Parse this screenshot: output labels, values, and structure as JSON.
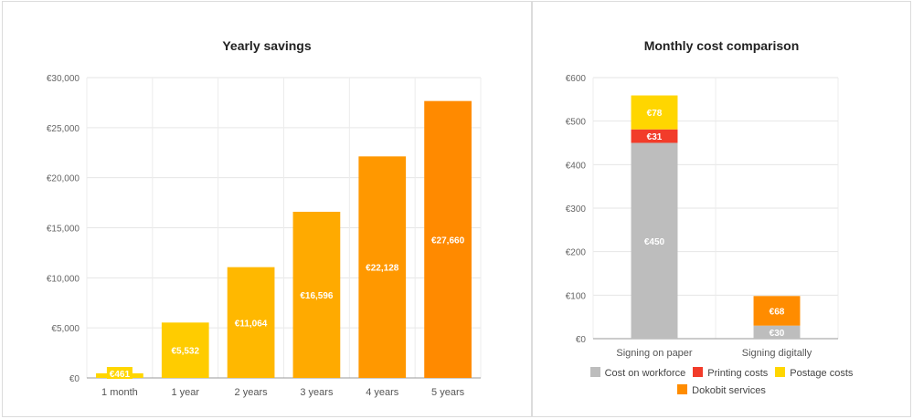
{
  "chart_data": [
    {
      "type": "bar",
      "title": "Yearly savings",
      "xlabel": "",
      "ylabel": "",
      "ylim": [
        0,
        30000
      ],
      "yticks": [
        0,
        5000,
        10000,
        15000,
        20000,
        25000,
        30000
      ],
      "ytick_labels": [
        "€0",
        "€5,000",
        "€10,000",
        "€15,000",
        "€20,000",
        "€25,000",
        "€30,000"
      ],
      "grid": true,
      "categories": [
        "1 month",
        "1 year",
        "2 years",
        "3 years",
        "4 years",
        "5 years"
      ],
      "values": [
        461,
        5532,
        11064,
        16596,
        22128,
        27660
      ],
      "data_labels": [
        "€461",
        "€5,532",
        "€11,064",
        "€16,596",
        "€22,128",
        "€27,660"
      ],
      "colors": [
        "#ffd600",
        "#ffcc00",
        "#ffb800",
        "#ffaa00",
        "#ff9800",
        "#ff8a00"
      ]
    },
    {
      "type": "bar",
      "stacked": true,
      "title": "Monthly cost comparison",
      "xlabel": "",
      "ylabel": "",
      "ylim": [
        0,
        600
      ],
      "yticks": [
        0,
        100,
        200,
        300,
        400,
        500,
        600
      ],
      "ytick_labels": [
        "€0",
        "€100",
        "€200",
        "€300",
        "€400",
        "€500",
        "€600"
      ],
      "grid": true,
      "legend_position": "bottom",
      "categories": [
        "Signing on paper",
        "Signing digitally"
      ],
      "series": [
        {
          "name": "Cost on workforce",
          "color": "#bdbdbd",
          "values": [
            450,
            30
          ],
          "labels": [
            "€450",
            "€30"
          ]
        },
        {
          "name": "Printing costs",
          "color": "#f23c2a",
          "values": [
            31,
            0
          ],
          "labels": [
            "€31",
            ""
          ]
        },
        {
          "name": "Postage costs",
          "color": "#ffd600",
          "values": [
            78,
            0
          ],
          "labels": [
            "€78",
            ""
          ]
        },
        {
          "name": "Dokobit services",
          "color": "#ff8c00",
          "values": [
            0,
            68
          ],
          "labels": [
            "",
            "€68"
          ]
        }
      ]
    }
  ]
}
